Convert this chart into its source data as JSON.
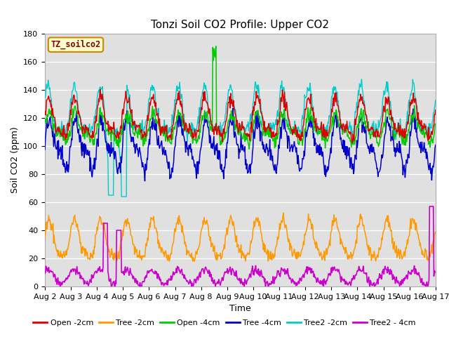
{
  "title": "Tonzi Soil CO2 Profile: Upper CO2",
  "ylabel": "Soil CO2 (ppm)",
  "xlabel": "Time",
  "legend_label": "TZ_soilco2",
  "ylim": [
    0,
    180
  ],
  "x_tick_labels": [
    "Aug 2",
    "Aug 3",
    "Aug 4",
    "Aug 5",
    "Aug 6",
    "Aug 7",
    "Aug 8",
    "Aug 9",
    "Aug 10",
    "Aug 11",
    "Aug 12",
    "Aug 13",
    "Aug 14",
    "Aug 15",
    "Aug 16",
    "Aug 17"
  ],
  "series_colors": {
    "Open_2cm": "#dd0000",
    "Tree_2cm": "#ff9900",
    "Open_4cm": "#00cc00",
    "Tree_4cm": "#0000cc",
    "Tree2_2cm": "#00cccc",
    "Tree2_4cm": "#cc00cc"
  },
  "bg_color": "#e0e0e0",
  "fig_bg": "#ffffff",
  "title_fontsize": 11,
  "axis_fontsize": 9,
  "tick_fontsize": 8,
  "legend_fontsize": 8
}
